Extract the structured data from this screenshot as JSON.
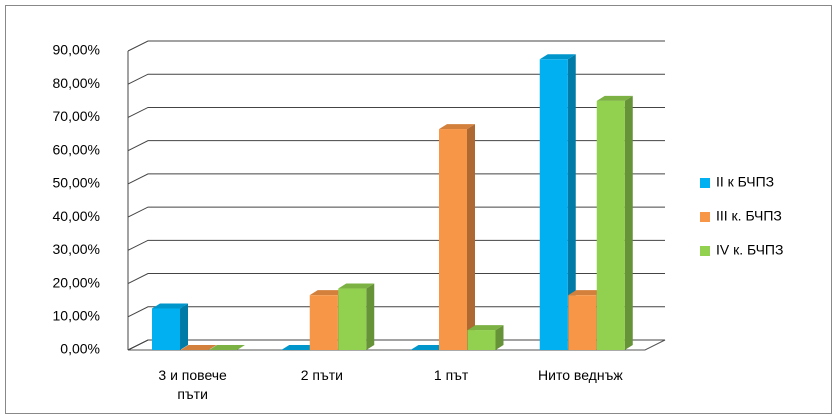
{
  "chart_data": {
    "type": "bar3d",
    "categories": [
      "3 и повече пъти",
      "2 пъти",
      "1 път",
      "Нито веднъж"
    ],
    "series": [
      {
        "name": "II к БЧПЗ",
        "color": "#00b0f0",
        "values": [
          12.5,
          0,
          0,
          87.5
        ]
      },
      {
        "name": "III к. БЧПЗ",
        "color": "#f79646",
        "values": [
          0,
          16.5,
          66.5,
          16.5
        ]
      },
      {
        "name": "IV к. БЧПЗ",
        "color": "#92d050",
        "values": [
          0,
          18.5,
          6,
          75
        ]
      }
    ],
    "ylim": [
      0,
      90
    ],
    "yticks": [
      {
        "value": 0,
        "label": "0,00%"
      },
      {
        "value": 10,
        "label": "10,00%"
      },
      {
        "value": 20,
        "label": "20,00%"
      },
      {
        "value": 30,
        "label": "30,00%"
      },
      {
        "value": 40,
        "label": "40,00%"
      },
      {
        "value": 50,
        "label": "50,00%"
      },
      {
        "value": 60,
        "label": "60,00%"
      },
      {
        "value": 70,
        "label": "70,00%"
      },
      {
        "value": 80,
        "label": "80,00%"
      },
      {
        "value": 90,
        "label": "90,00%"
      }
    ],
    "grid": true,
    "legend": "right"
  }
}
